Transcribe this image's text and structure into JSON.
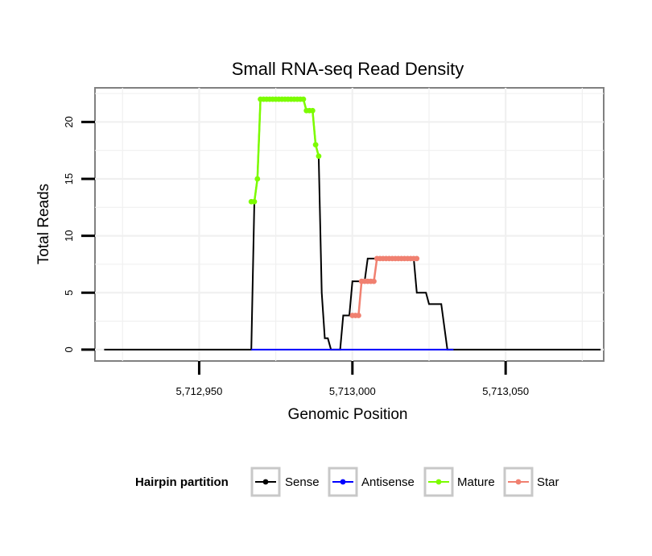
{
  "chart_data": {
    "type": "line",
    "title": "Small RNA-seq Read Density",
    "xlabel": "Genomic Position",
    "ylabel": "Total Reads",
    "xlim": [
      5712916,
      5713082
    ],
    "ylim": [
      -1,
      23
    ],
    "x_ticks": [
      5712950,
      5713000,
      5713050
    ],
    "x_tick_labels": [
      "5,712,950",
      "5,713,000",
      "5,713,050"
    ],
    "y_ticks": [
      0,
      5,
      10,
      15,
      20
    ],
    "y_tick_labels": [
      "0",
      "5",
      "10",
      "15",
      "20"
    ],
    "grid": true,
    "legend": {
      "position": "bottom",
      "title": "Hairpin partition",
      "entries": [
        {
          "label": "Sense",
          "color": "#000000"
        },
        {
          "label": "Antisense",
          "color": "#0000ff"
        },
        {
          "label": "Mature",
          "color": "#7cfc00"
        },
        {
          "label": "Star",
          "color": "#f08070"
        }
      ]
    },
    "series": [
      {
        "name": "Sense",
        "color": "#000000",
        "x": [
          5712919,
          5712967,
          5712968,
          5712969,
          5712970,
          5712971,
          5712972,
          5712973,
          5712974,
          5712975,
          5712976,
          5712977,
          5712978,
          5712979,
          5712980,
          5712981,
          5712982,
          5712983,
          5712984,
          5712985,
          5712986,
          5712987,
          5712988,
          5712989,
          5712990,
          5712991,
          5712992,
          5712993,
          5712994,
          5712995,
          5712996,
          5712997,
          5712998,
          5712999,
          5713000,
          5713001,
          5713002,
          5713003,
          5713004,
          5713005,
          5713006,
          5713007,
          5713008,
          5713009,
          5713010,
          5713011,
          5713012,
          5713013,
          5713014,
          5713015,
          5713016,
          5713017,
          5713018,
          5713019,
          5713020,
          5713021,
          5713022,
          5713023,
          5713024,
          5713025,
          5713026,
          5713027,
          5713028,
          5713029,
          5713030,
          5713031,
          5713032,
          5713033,
          5713034,
          5713035,
          5713081
        ],
        "y": [
          0,
          0,
          13,
          15,
          22,
          22,
          22,
          22,
          22,
          22,
          22,
          22,
          22,
          22,
          22,
          22,
          22,
          22,
          22,
          21,
          21,
          21,
          18,
          17,
          5,
          1,
          1,
          0,
          0,
          0,
          0,
          3,
          3,
          3,
          6,
          6,
          6,
          6,
          6,
          8,
          8,
          8,
          8,
          8,
          8,
          8,
          8,
          8,
          8,
          8,
          8,
          8,
          8,
          8,
          8,
          5,
          5,
          5,
          5,
          4,
          4,
          4,
          4,
          4,
          2,
          0,
          0,
          0,
          0,
          0,
          0
        ]
      },
      {
        "name": "Antisense",
        "color": "#0000ff",
        "x": [
          5712967,
          5713033
        ],
        "y": [
          0,
          0
        ]
      },
      {
        "name": "Mature",
        "color": "#7cfc00",
        "x": [
          5712967,
          5712968,
          5712969,
          5712970,
          5712971,
          5712972,
          5712973,
          5712974,
          5712975,
          5712976,
          5712977,
          5712978,
          5712979,
          5712980,
          5712981,
          5712982,
          5712983,
          5712984,
          5712985,
          5712986,
          5712987,
          5712988,
          5712989
        ],
        "y": [
          13,
          13,
          15,
          22,
          22,
          22,
          22,
          22,
          22,
          22,
          22,
          22,
          22,
          22,
          22,
          22,
          22,
          22,
          21,
          21,
          21,
          18,
          17
        ]
      },
      {
        "name": "Star",
        "color": "#f08070",
        "x": [
          5713000,
          5713001,
          5713002,
          5713003,
          5713004,
          5713005,
          5713006,
          5713007,
          5713008,
          5713009,
          5713010,
          5713011,
          5713012,
          5713013,
          5713014,
          5713015,
          5713016,
          5713017,
          5713018,
          5713019,
          5713020,
          5713021
        ],
        "y": [
          3,
          3,
          3,
          6,
          6,
          6,
          6,
          6,
          8,
          8,
          8,
          8,
          8,
          8,
          8,
          8,
          8,
          8,
          8,
          8,
          8,
          8
        ]
      }
    ]
  }
}
